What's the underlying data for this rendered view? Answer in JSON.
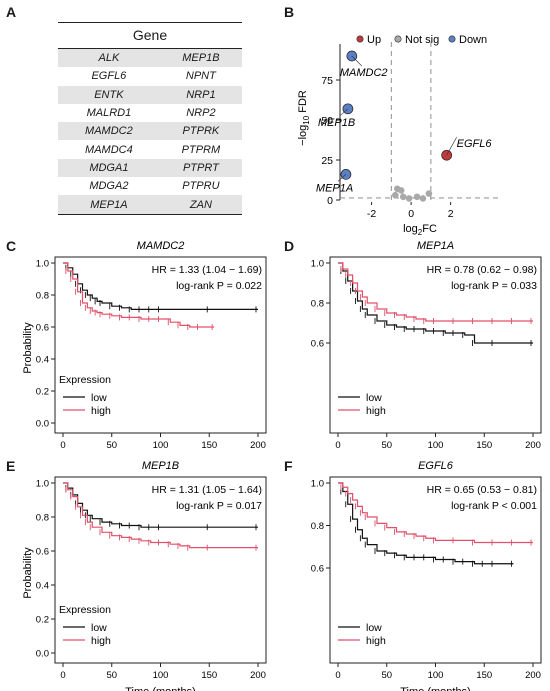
{
  "panels": [
    "A",
    "B",
    "C",
    "D",
    "E",
    "F"
  ],
  "gene_table": {
    "header": "Gene",
    "rows": [
      [
        "ALK",
        "MEP1B"
      ],
      [
        "EGFL6",
        "NPNT"
      ],
      [
        "ENTK",
        "NRP1"
      ],
      [
        "MALRD1",
        "NRP2"
      ],
      [
        "MAMDC2",
        "PTPRK"
      ],
      [
        "MAMDC4",
        "PTPRM"
      ],
      [
        "MDGA1",
        "PTPRT"
      ],
      [
        "MDGA2",
        "PTPRU"
      ],
      [
        "MEP1A",
        "ZAN"
      ]
    ]
  },
  "colors": {
    "up": "#c0393b",
    "down": "#5b7fc2",
    "notsig": "#a9a9a9",
    "high": "#e0506a",
    "low": "#111111"
  },
  "chart_data": [
    {
      "panel": "B",
      "type": "scatter",
      "xlabel": "log2FC",
      "ylabel": "-log10 FDR",
      "xlim": [
        -3.6,
        4.5
      ],
      "ylim": [
        0,
        95
      ],
      "xticks": [
        -2,
        0,
        2
      ],
      "yticks": [
        0,
        25,
        50,
        75
      ],
      "thresholds": {
        "x": [
          -1,
          1
        ],
        "y": 1.3
      },
      "legend": [
        "Up",
        "Not sig",
        "Down"
      ],
      "points": [
        {
          "x": -3.0,
          "y": 90,
          "group": "Down",
          "label": "MAMDC2"
        },
        {
          "x": -3.2,
          "y": 57,
          "group": "Down",
          "label": "MEP1B"
        },
        {
          "x": -3.3,
          "y": 16,
          "group": "Down",
          "label": "MEP1A"
        },
        {
          "x": 1.8,
          "y": 28,
          "group": "Up",
          "label": "EGFL6"
        },
        {
          "x": -0.7,
          "y": 7,
          "group": "Not sig"
        },
        {
          "x": -0.5,
          "y": 6,
          "group": "Not sig"
        },
        {
          "x": -0.8,
          "y": 3,
          "group": "Not sig"
        },
        {
          "x": -0.4,
          "y": 2,
          "group": "Not sig"
        },
        {
          "x": -0.1,
          "y": 1,
          "group": "Not sig"
        },
        {
          "x": 0.3,
          "y": 2,
          "group": "Not sig"
        },
        {
          "x": 0.6,
          "y": 1,
          "group": "Not sig"
        },
        {
          "x": 0.9,
          "y": 4,
          "group": "Not sig"
        }
      ]
    },
    {
      "panel": "C",
      "type": "line",
      "title": "MAMDC2",
      "hr": "HR = 1.33 (1.04 − 1.69)",
      "logrank": "log-rank P = 0.022",
      "xlabel": "",
      "ylabel": "Probability",
      "xlim": [
        0,
        200
      ],
      "ylim": [
        0,
        1
      ],
      "xticks": [
        0,
        50,
        100,
        150,
        200
      ],
      "yticks": [
        0,
        0.2,
        0.4,
        0.6,
        0.8,
        1.0
      ],
      "legend_title": "Expression",
      "series": [
        {
          "name": "low",
          "x": [
            0,
            5,
            10,
            15,
            20,
            25,
            30,
            35,
            40,
            50,
            60,
            70,
            80,
            90,
            100,
            150,
            200
          ],
          "y": [
            1,
            0.97,
            0.93,
            0.87,
            0.83,
            0.8,
            0.78,
            0.76,
            0.75,
            0.73,
            0.72,
            0.71,
            0.71,
            0.71,
            0.71,
            0.71,
            0.71
          ]
        },
        {
          "name": "high",
          "x": [
            0,
            5,
            10,
            15,
            20,
            25,
            30,
            35,
            40,
            50,
            60,
            70,
            80,
            90,
            100,
            110,
            120,
            130,
            140,
            155
          ],
          "y": [
            1,
            0.95,
            0.9,
            0.82,
            0.75,
            0.72,
            0.7,
            0.69,
            0.68,
            0.67,
            0.66,
            0.66,
            0.65,
            0.65,
            0.65,
            0.63,
            0.61,
            0.6,
            0.6,
            0.6
          ]
        }
      ]
    },
    {
      "panel": "D",
      "type": "line",
      "title": "MEP1A",
      "hr": "HR = 0.78 (0.62 − 0.98)",
      "logrank": "log-rank P = 0.033",
      "xlabel": "",
      "ylabel": "",
      "xlim": [
        0,
        200
      ],
      "ylim": [
        0,
        1
      ],
      "xticks": [
        0,
        50,
        100,
        150,
        200
      ],
      "yticks": [
        0.6,
        0.8,
        1.0
      ],
      "legend_title": "",
      "series": [
        {
          "name": "low",
          "x": [
            0,
            5,
            10,
            15,
            20,
            25,
            30,
            40,
            50,
            60,
            70,
            80,
            90,
            100,
            110,
            120,
            130,
            140,
            160,
            200
          ],
          "y": [
            1,
            0.96,
            0.91,
            0.86,
            0.81,
            0.77,
            0.74,
            0.71,
            0.69,
            0.68,
            0.67,
            0.67,
            0.66,
            0.66,
            0.65,
            0.65,
            0.64,
            0.6,
            0.6,
            0.6
          ]
        },
        {
          "name": "high",
          "x": [
            0,
            5,
            10,
            15,
            20,
            25,
            30,
            40,
            50,
            60,
            70,
            80,
            90,
            100,
            120,
            140,
            160,
            180,
            200
          ],
          "y": [
            1,
            0.97,
            0.94,
            0.9,
            0.86,
            0.83,
            0.8,
            0.77,
            0.75,
            0.74,
            0.73,
            0.72,
            0.71,
            0.71,
            0.71,
            0.71,
            0.71,
            0.71,
            0.71
          ]
        }
      ]
    },
    {
      "panel": "E",
      "type": "line",
      "title": "MEP1B",
      "hr": "HR = 1.31 (1.05 − 1.64)",
      "logrank": "log-rank P = 0.017",
      "xlabel": "Time (months)",
      "ylabel": "Probability",
      "xlim": [
        0,
        200
      ],
      "ylim": [
        0,
        1
      ],
      "xticks": [
        0,
        50,
        100,
        150,
        200
      ],
      "yticks": [
        0,
        0.2,
        0.4,
        0.6,
        0.8,
        1.0
      ],
      "legend_title": "Expression",
      "series": [
        {
          "name": "low",
          "x": [
            0,
            5,
            10,
            15,
            20,
            25,
            30,
            40,
            50,
            60,
            70,
            80,
            90,
            100,
            150,
            200
          ],
          "y": [
            1,
            0.97,
            0.93,
            0.88,
            0.84,
            0.81,
            0.79,
            0.77,
            0.76,
            0.75,
            0.75,
            0.74,
            0.74,
            0.74,
            0.74,
            0.74
          ]
        },
        {
          "name": "high",
          "x": [
            0,
            5,
            10,
            15,
            20,
            25,
            30,
            40,
            50,
            60,
            70,
            80,
            90,
            100,
            110,
            120,
            130,
            150,
            200
          ],
          "y": [
            1,
            0.96,
            0.92,
            0.86,
            0.81,
            0.77,
            0.74,
            0.71,
            0.69,
            0.68,
            0.67,
            0.66,
            0.65,
            0.65,
            0.64,
            0.63,
            0.62,
            0.62,
            0.62
          ]
        }
      ]
    },
    {
      "panel": "F",
      "type": "line",
      "title": "EGFL6",
      "hr": "HR = 0.65 (0.53 − 0.81)",
      "logrank": "log-rank P < 0.001",
      "xlabel": "Time (months)",
      "ylabel": "",
      "xlim": [
        0,
        200
      ],
      "ylim": [
        0,
        1
      ],
      "xticks": [
        0,
        50,
        100,
        150,
        200
      ],
      "yticks": [
        0.6,
        0.8,
        1.0
      ],
      "legend_title": "",
      "series": [
        {
          "name": "low",
          "x": [
            0,
            5,
            10,
            15,
            20,
            25,
            30,
            40,
            50,
            60,
            70,
            80,
            90,
            100,
            110,
            120,
            130,
            140,
            150,
            160,
            180
          ],
          "y": [
            1,
            0.96,
            0.9,
            0.83,
            0.78,
            0.74,
            0.71,
            0.68,
            0.67,
            0.66,
            0.65,
            0.65,
            0.65,
            0.64,
            0.64,
            0.63,
            0.63,
            0.62,
            0.62,
            0.62,
            0.62
          ]
        },
        {
          "name": "high",
          "x": [
            0,
            5,
            10,
            15,
            20,
            25,
            30,
            40,
            50,
            60,
            70,
            80,
            90,
            100,
            120,
            140,
            160,
            180,
            200
          ],
          "y": [
            1,
            0.98,
            0.95,
            0.92,
            0.89,
            0.86,
            0.84,
            0.81,
            0.79,
            0.77,
            0.76,
            0.75,
            0.74,
            0.73,
            0.73,
            0.72,
            0.72,
            0.72,
            0.72
          ]
        }
      ]
    }
  ]
}
